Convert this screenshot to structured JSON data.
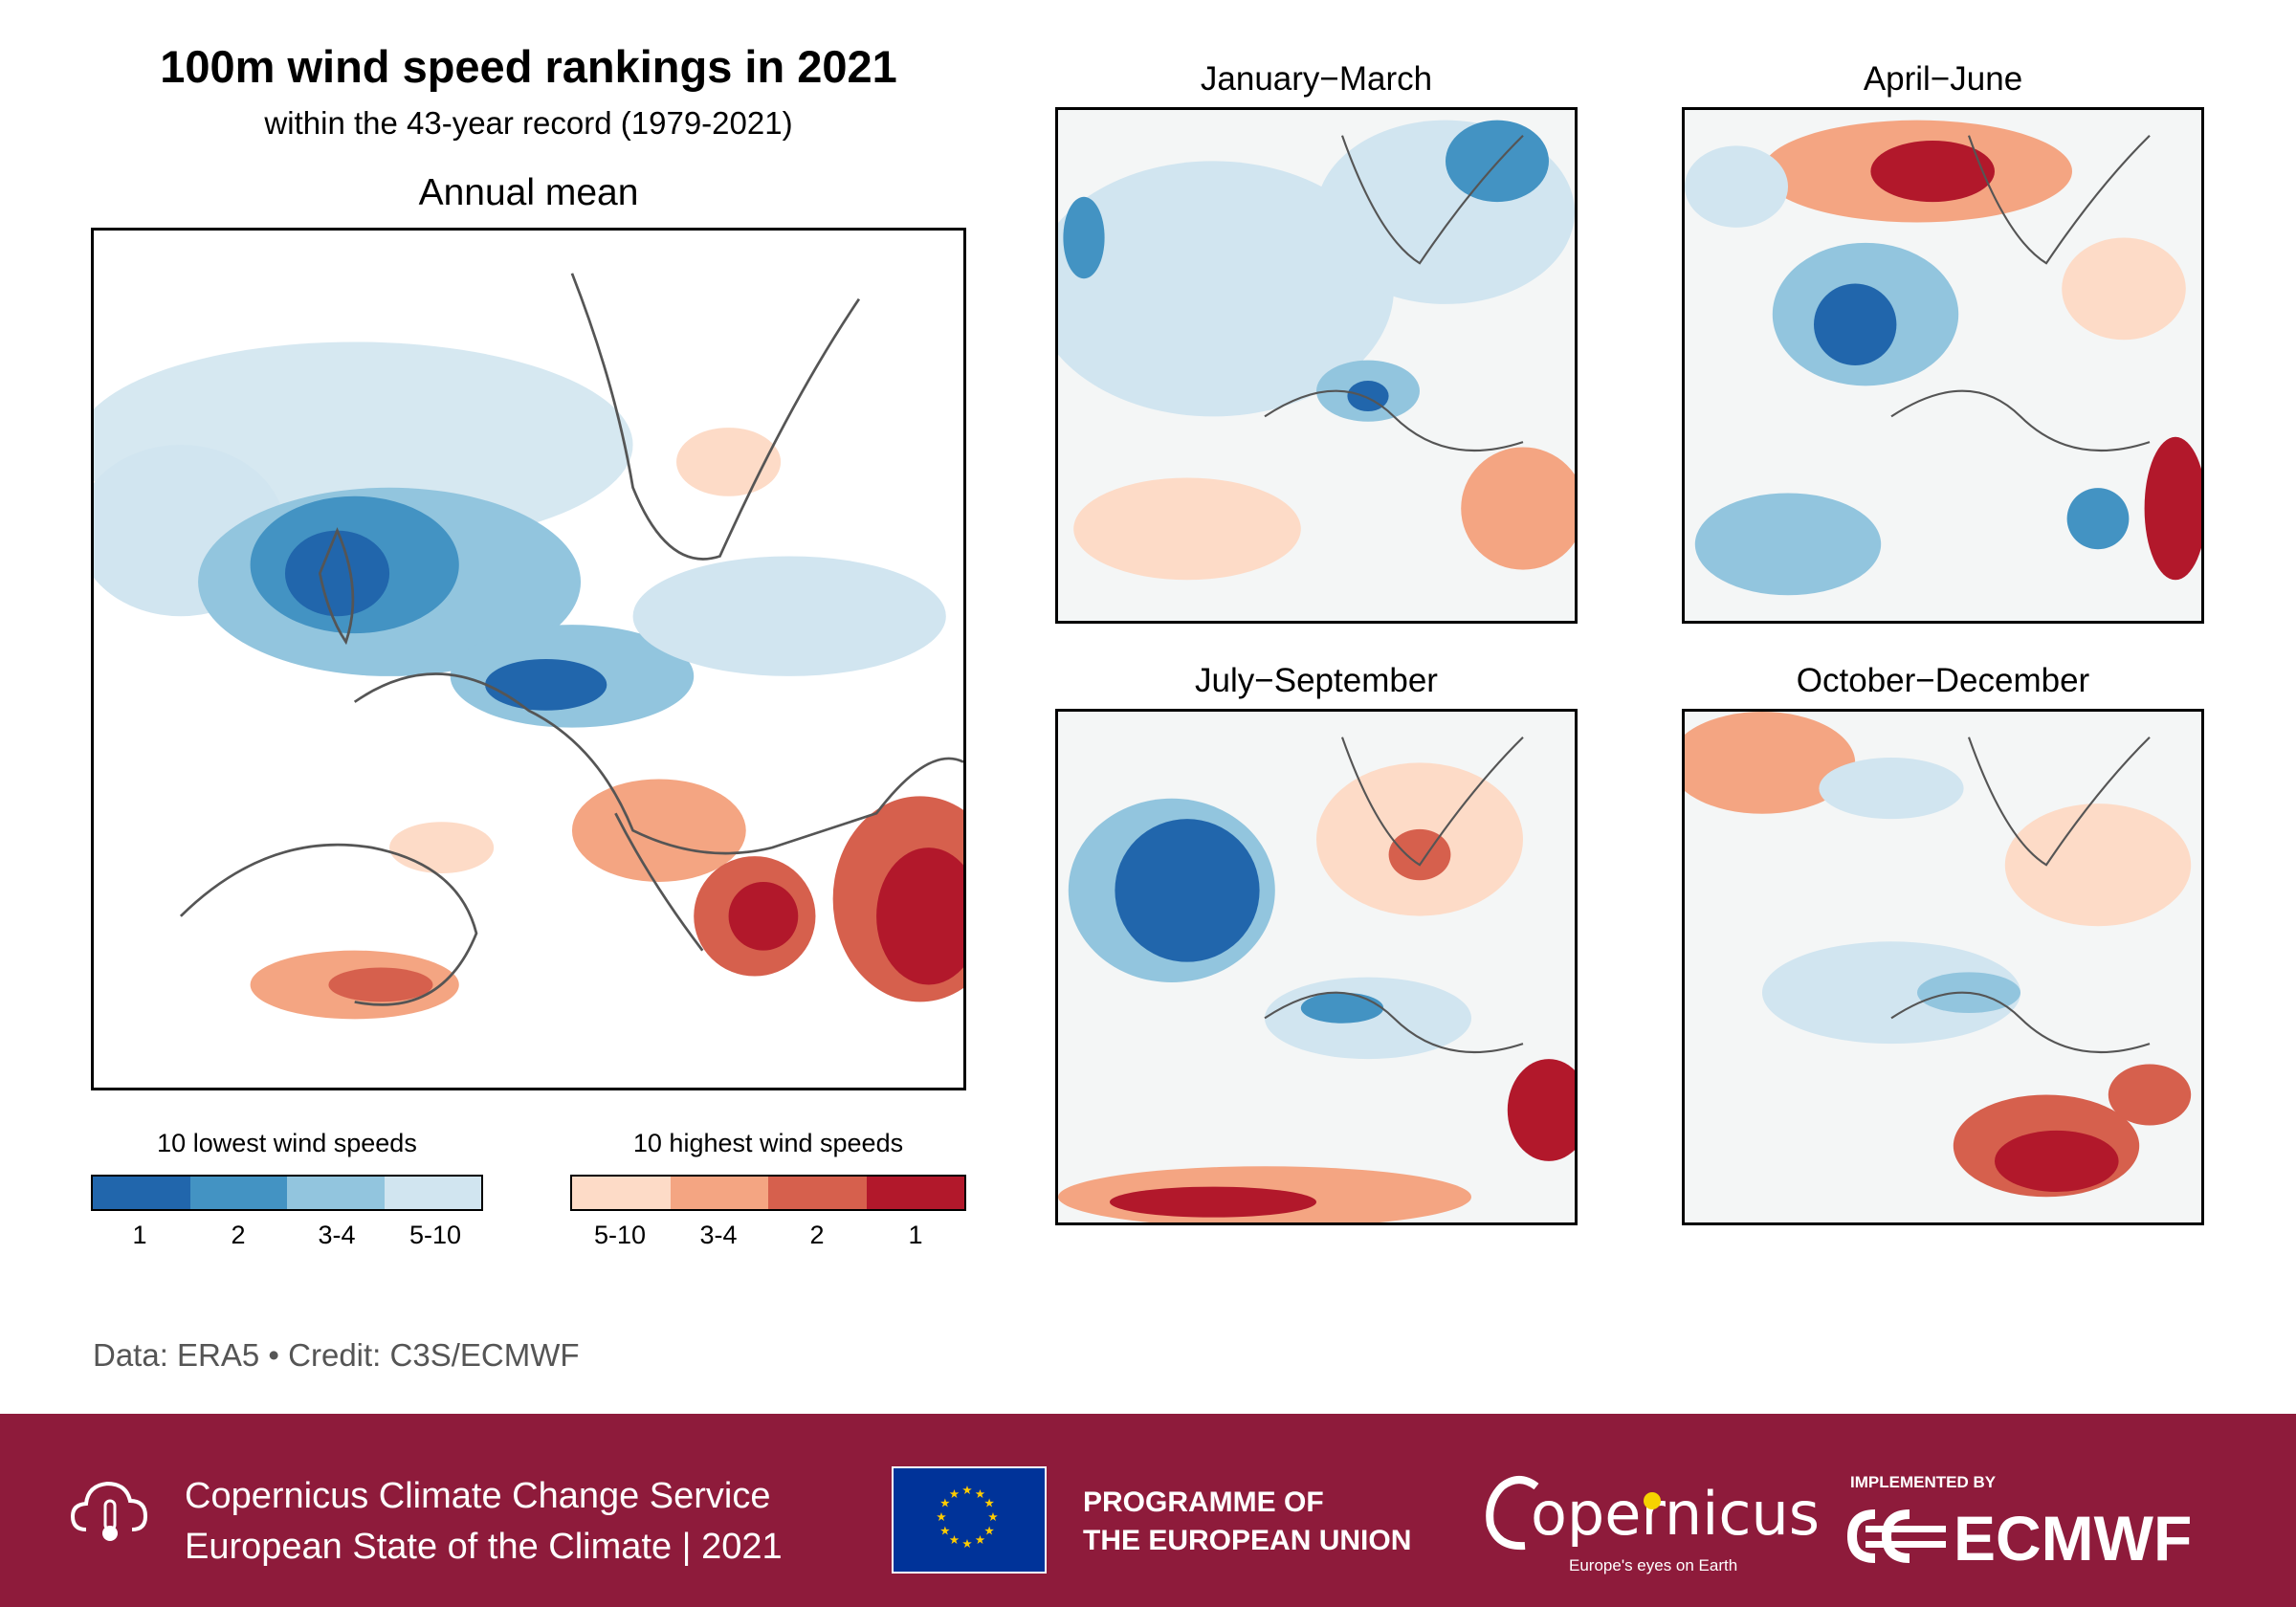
{
  "title": "100m wind speed rankings in 2021",
  "subtitle": "within the 43-year record (1979-2021)",
  "annual": {
    "title": "Annual mean"
  },
  "seasons": [
    {
      "title": "January−March"
    },
    {
      "title": "April−June"
    },
    {
      "title": "July−September"
    },
    {
      "title": "October−December"
    }
  ],
  "legend": {
    "low": {
      "label": "10 lowest wind speeds",
      "ticks": [
        "1",
        "2",
        "3-4",
        "5-10"
      ],
      "colors": [
        "#2166ac",
        "#4393c3",
        "#92c5de",
        "#d1e5f0"
      ]
    },
    "high": {
      "label": "10 highest wind speeds",
      "ticks": [
        "5-10",
        "3-4",
        "2",
        "1"
      ],
      "colors": [
        "#fddbc7",
        "#f4a582",
        "#d6604d",
        "#b2182b"
      ]
    }
  },
  "credit": "Data: ERA5  •  Credit: C3S/ECMWF",
  "footer": {
    "bg_color": "#8e1b3b",
    "service": "Copernicus Climate Change Service",
    "report": "European State of the Climate | 2021",
    "programme_line1": "PROGRAMME OF",
    "programme_line2": "THE EUROPEAN UNION",
    "copernicus": "opernicus",
    "copernicus_tagline": "Europe's eyes on Earth",
    "implemented_by": "IMPLEMENTED BY",
    "ecmwf": "ECMWF"
  }
}
